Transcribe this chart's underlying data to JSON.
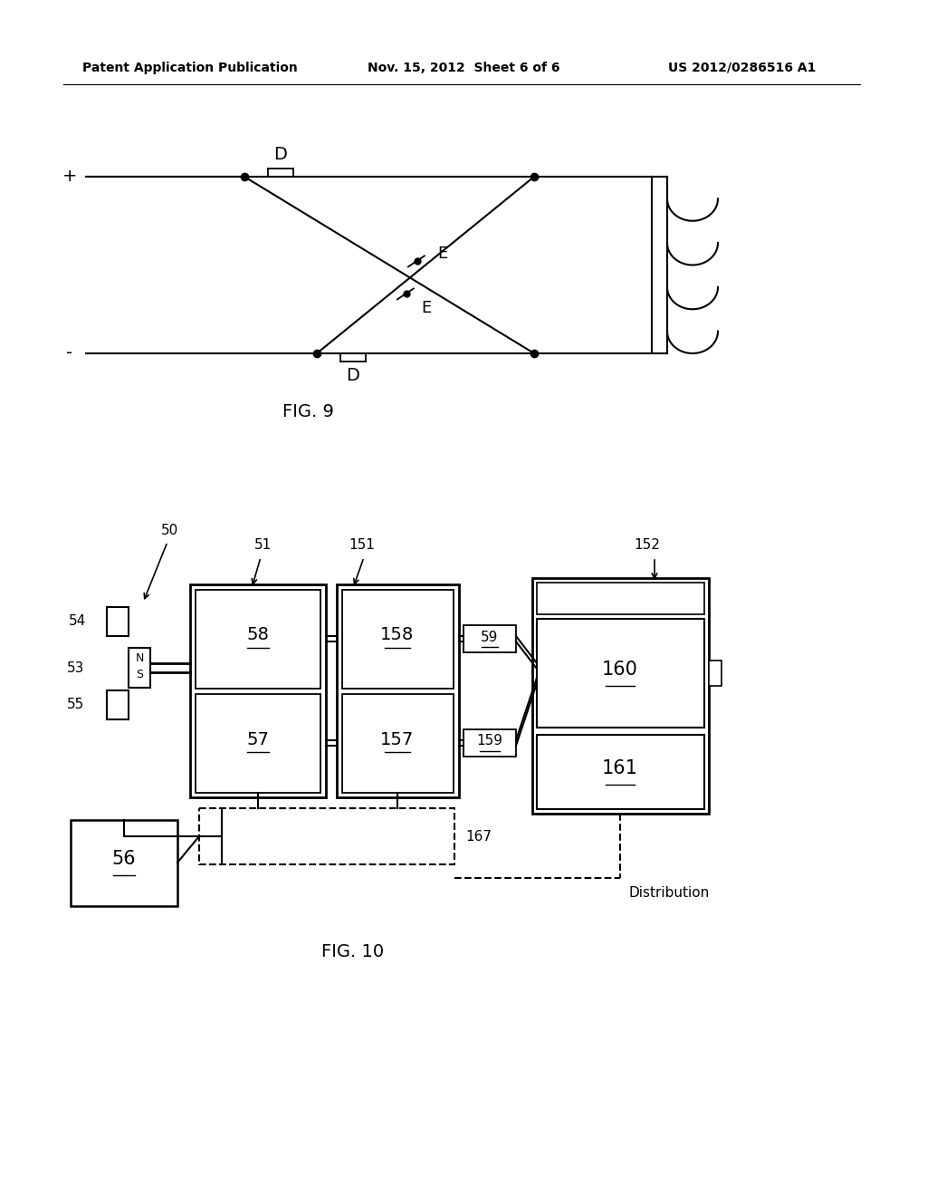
{
  "bg_color": "#ffffff",
  "header_left": "Patent Application Publication",
  "header_mid": "Nov. 15, 2012  Sheet 6 of 6",
  "header_right": "US 2012/0286516 A1",
  "fig9_caption": "FIG. 9",
  "fig10_caption": "FIG. 10",
  "fig9": {
    "plus_label": "+",
    "minus_label": "-",
    "D_top_label": "D",
    "D_bot_label": "D",
    "E_top_label": "E",
    "E_bot_label": "E"
  },
  "fig10": {
    "label_50": "50",
    "label_51": "51",
    "label_151": "151",
    "label_152": "152",
    "label_53": "53",
    "label_54": "54",
    "label_55": "55",
    "label_56": "56",
    "label_57": "57",
    "label_58": "58",
    "label_59": "59",
    "label_157": "157",
    "label_158": "158",
    "label_159": "159",
    "label_160": "160",
    "label_161": "161",
    "label_167": "167",
    "label_dist": "Distribution",
    "label_N": "N",
    "label_S": "S"
  }
}
